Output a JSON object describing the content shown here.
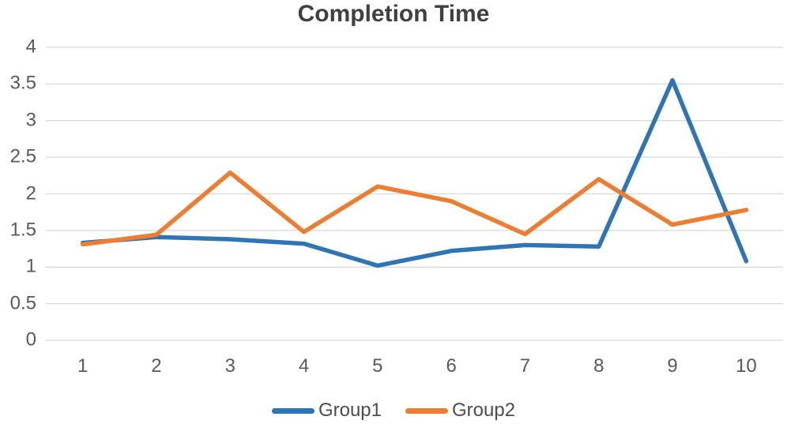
{
  "chart_data": {
    "type": "line",
    "title": "Completion Time",
    "x": [
      "1",
      "2",
      "3",
      "4",
      "5",
      "6",
      "7",
      "8",
      "9",
      "10"
    ],
    "series": [
      {
        "name": "Group1",
        "color": "#2E75B6",
        "values": [
          1.33,
          1.41,
          1.38,
          1.32,
          1.02,
          1.22,
          1.3,
          1.28,
          3.55,
          1.08
        ]
      },
      {
        "name": "Group2",
        "color": "#ED7D31",
        "values": [
          1.31,
          1.44,
          2.29,
          1.48,
          2.1,
          1.9,
          1.45,
          2.2,
          1.58,
          1.78
        ]
      }
    ],
    "xlabel": "",
    "ylabel": "",
    "ylim": [
      0,
      4
    ],
    "yticks": [
      "0",
      "0.5",
      "1",
      "1.5",
      "2",
      "2.5",
      "3",
      "3.5",
      "4"
    ],
    "grid": true,
    "legend_position": "bottom",
    "colors": {
      "grid": "#D9D9D9",
      "axis_text": "#595959",
      "title_text": "#404040",
      "legend_text": "#4D4D4D",
      "background": "#FFFFFF"
    }
  }
}
